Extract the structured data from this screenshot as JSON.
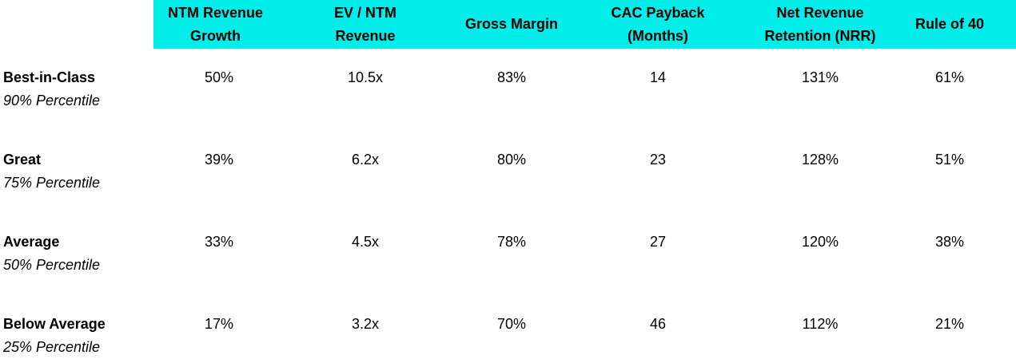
{
  "table": {
    "headers": [
      [
        "NTM Revenue",
        "Growth"
      ],
      [
        "EV / NTM",
        "Revenue"
      ],
      [
        "Gross Margin"
      ],
      [
        "CAC Payback",
        "(Months)"
      ],
      [
        "Net Revenue",
        "Retention (NRR)"
      ],
      [
        "Rule of 40"
      ]
    ],
    "rows": [
      {
        "label": "Best-in-Class",
        "sublabel": "90% Percentile",
        "values": [
          "50%",
          "10.5x",
          "83%",
          "14",
          "131%",
          "61%"
        ]
      },
      {
        "label": "Great",
        "sublabel": "75% Percentile",
        "values": [
          "39%",
          "6.2x",
          "80%",
          "23",
          "128%",
          "51%"
        ]
      },
      {
        "label": "Average",
        "sublabel": "50% Percentile",
        "values": [
          "33%",
          "4.5x",
          "78%",
          "27",
          "120%",
          "38%"
        ]
      },
      {
        "label": "Below Average",
        "sublabel": "25% Percentile",
        "values": [
          "17%",
          "3.2x",
          "70%",
          "46",
          "112%",
          "21%"
        ]
      }
    ]
  },
  "colors": {
    "header_background": "#00EEEA"
  }
}
